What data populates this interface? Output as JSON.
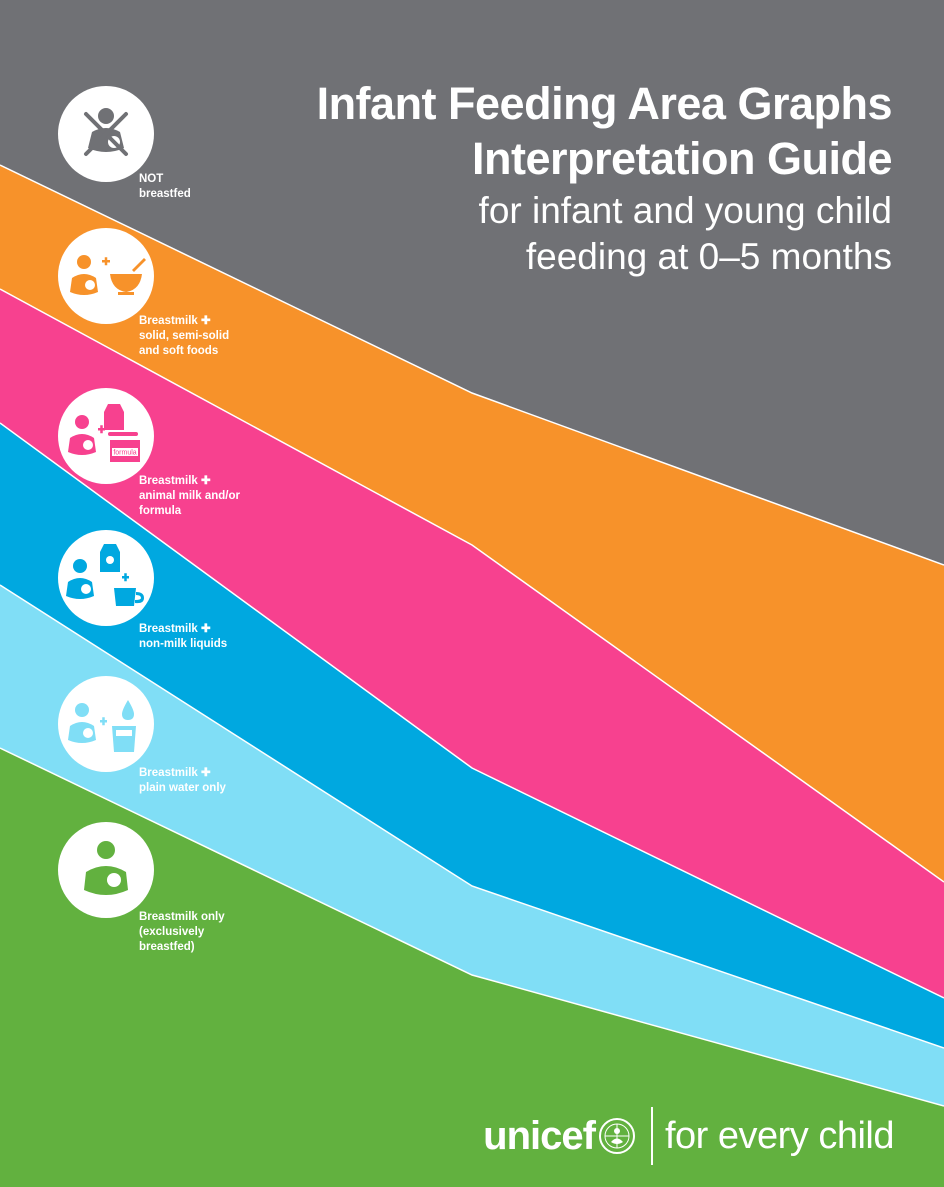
{
  "title": {
    "line1": "Infant Feeding Area Graphs",
    "line2": "Interpretation Guide",
    "subtitle_line1": "for infant and young child",
    "subtitle_line2": "feeding at 0–5 months"
  },
  "legend": [
    {
      "id": "not-breastfed",
      "icon": "crossed-out-breastfeeding-icon",
      "color": "#707175",
      "lines": [
        "NOT",
        "breastfed"
      ]
    },
    {
      "id": "solid-foods",
      "icon": "breastfeeding-plus-bowl-icon",
      "color": "#F7922A",
      "lines": [
        "Breastmilk ✚",
        "solid, semi-solid",
        "and soft foods"
      ]
    },
    {
      "id": "animal-milk-formula",
      "icon": "breastfeeding-plus-milk-carton-formula-icon",
      "color": "#F7418F",
      "lines": [
        "Breastmilk ✚",
        "animal milk and/or",
        "formula"
      ]
    },
    {
      "id": "non-milk-liquids",
      "icon": "breastfeeding-plus-juice-cup-icon",
      "color": "#00A8E0",
      "lines": [
        "Breastmilk ✚",
        "non-milk liquids"
      ]
    },
    {
      "id": "plain-water",
      "icon": "breastfeeding-plus-water-glass-icon",
      "color": "#80DEF6",
      "lines": [
        "Breastmilk ✚",
        "plain water only"
      ]
    },
    {
      "id": "exclusive-breastfeeding",
      "icon": "breastfeeding-icon",
      "color": "#62B13F",
      "lines": [
        "Breastmilk only",
        "(exclusively",
        "breastfed)"
      ]
    }
  ],
  "formula_label": "formula",
  "brand": {
    "name": "unicef",
    "emblem": "unicef-emblem-icon",
    "tagline": "for every child"
  }
}
